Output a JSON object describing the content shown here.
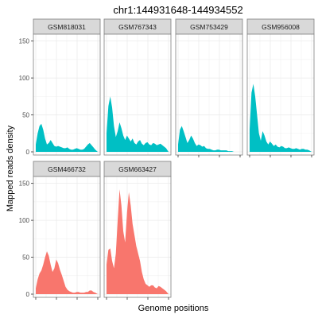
{
  "chart_data": {
    "type": "area",
    "title": "chr1:144931648-144934552",
    "xlabel": "Genome positions",
    "ylabel": "Mapped reads density",
    "ylim": [
      0,
      155
    ],
    "yticks": [
      0,
      50,
      100,
      150
    ],
    "x_tick_labels_shown": false,
    "grid": true,
    "facet_layout": "4 columns x 2 rows",
    "colors": {
      "teal_group": "#00BFC4",
      "red_group": "#F8766D",
      "strip_fill": "#D9D9D9",
      "panel_border": "#7F7F7F",
      "grid": "#EBEBEB"
    },
    "x": [
      0,
      0.03,
      0.06,
      0.09,
      0.12,
      0.15,
      0.18,
      0.21,
      0.24,
      0.27,
      0.3,
      0.33,
      0.36,
      0.39,
      0.42,
      0.45,
      0.48,
      0.51,
      0.54,
      0.57,
      0.6,
      0.63,
      0.66,
      0.69,
      0.72,
      0.75,
      0.78,
      0.81,
      0.84,
      0.87,
      0.9,
      0.93,
      0.96,
      1.0
    ],
    "panels": [
      {
        "name": "GSM818031",
        "color": "#00BFC4",
        "values": [
          10,
          25,
          35,
          38,
          30,
          18,
          10,
          12,
          16,
          12,
          8,
          7,
          8,
          7,
          6,
          5,
          5,
          6,
          4,
          3,
          3,
          4,
          5,
          4,
          3,
          3,
          4,
          7,
          10,
          12,
          9,
          6,
          3,
          0
        ]
      },
      {
        "name": "GSM767343",
        "color": "#00BFC4",
        "values": [
          25,
          62,
          75,
          60,
          35,
          20,
          28,
          40,
          32,
          22,
          16,
          22,
          18,
          14,
          18,
          12,
          10,
          14,
          16,
          11,
          9,
          12,
          13,
          10,
          9,
          12,
          11,
          9,
          10,
          11,
          9,
          7,
          5,
          0
        ]
      },
      {
        "name": "GSM753429",
        "color": "#00BFC4",
        "values": [
          10,
          30,
          35,
          28,
          20,
          12,
          16,
          22,
          18,
          12,
          8,
          10,
          9,
          7,
          8,
          5,
          4,
          4,
          3,
          2,
          2,
          3,
          3,
          2,
          2,
          2,
          2,
          1,
          1,
          1,
          0,
          0,
          0,
          0
        ]
      },
      {
        "name": "GSM956008",
        "color": "#00BFC4",
        "values": [
          30,
          80,
          92,
          75,
          50,
          25,
          15,
          28,
          22,
          14,
          10,
          14,
          11,
          8,
          10,
          7,
          6,
          8,
          7,
          5,
          5,
          6,
          5,
          4,
          4,
          5,
          4,
          3,
          4,
          4,
          3,
          3,
          2,
          0
        ]
      },
      {
        "name": "GSM466732",
        "color": "#F8766D",
        "values": [
          8,
          20,
          28,
          32,
          40,
          50,
          58,
          52,
          40,
          30,
          35,
          47,
          42,
          33,
          26,
          18,
          10,
          6,
          4,
          3,
          2,
          2,
          3,
          3,
          2,
          2,
          2,
          3,
          3,
          5,
          5,
          3,
          2,
          0
        ]
      },
      {
        "name": "GSM663427",
        "color": "#F8766D",
        "values": [
          40,
          60,
          62,
          45,
          35,
          55,
          100,
          142,
          120,
          85,
          70,
          110,
          138,
          120,
          95,
          80,
          65,
          55,
          45,
          30,
          20,
          14,
          12,
          10,
          12,
          12,
          9,
          8,
          11,
          10,
          8,
          6,
          4,
          0
        ]
      }
    ]
  }
}
